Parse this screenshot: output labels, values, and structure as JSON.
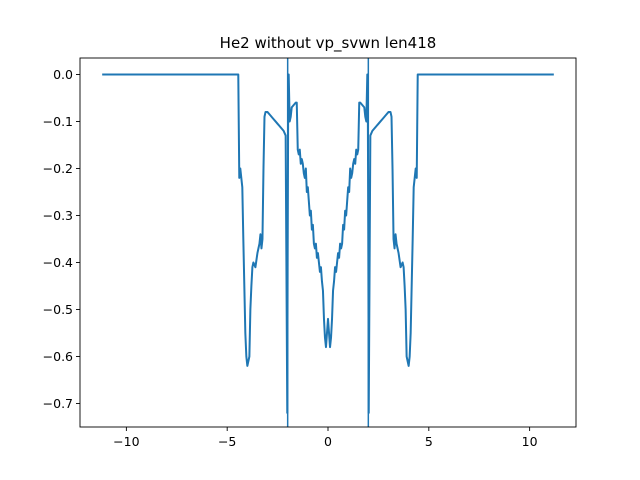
{
  "chart_data": {
    "type": "line",
    "title": "He2 without vp_svwn len418",
    "xlabel": "",
    "ylabel": "",
    "xlim": [
      -12.3,
      12.3
    ],
    "ylim": [
      -0.75,
      0.035
    ],
    "xticks": [
      -10,
      -5,
      0,
      5,
      10
    ],
    "xtick_labels": [
      "−10",
      "−5",
      "0",
      "5",
      "10"
    ],
    "yticks": [
      0.0,
      -0.1,
      -0.2,
      -0.3,
      -0.4,
      -0.5,
      -0.6,
      -0.7
    ],
    "ytick_labels": [
      "0.0",
      "−0.1",
      "−0.2",
      "−0.3",
      "−0.4",
      "−0.5",
      "−0.6",
      "−0.7"
    ],
    "grid": false,
    "series_color": "#1f77b4",
    "vlines": [
      -2.0,
      2.0
    ],
    "series": [
      {
        "x": [
          -11.2,
          -8.0,
          -5.0,
          -4.45,
          -4.4,
          -4.35,
          -4.3,
          -4.25,
          -4.2,
          -4.1,
          -4.05,
          -4.0,
          -3.9,
          -3.85,
          -3.8,
          -3.75,
          -3.7,
          -3.6,
          -3.5,
          -3.45,
          -3.4,
          -3.35,
          -3.3,
          -3.25,
          -3.2,
          -3.15,
          -3.1,
          -3.0,
          -2.9,
          -2.8,
          -2.7,
          -2.6,
          -2.5,
          -2.4,
          -2.3,
          -2.2,
          -2.1,
          -2.02,
          -2.0,
          -1.97,
          -1.95,
          -1.9,
          -1.85,
          -1.8,
          -1.7,
          -1.6,
          -1.55,
          -1.5,
          -1.45,
          -1.4,
          -1.35,
          -1.3,
          -1.25,
          -1.2,
          -1.15,
          -1.1,
          -1.05,
          -1.0,
          -0.95,
          -0.9,
          -0.85,
          -0.8,
          -0.75,
          -0.7,
          -0.65,
          -0.6,
          -0.55,
          -0.5,
          -0.45,
          -0.4,
          -0.35,
          -0.3,
          -0.25,
          -0.2,
          -0.15,
          -0.1,
          0.0,
          0.1,
          0.15,
          0.2,
          0.25,
          0.3,
          0.35,
          0.4,
          0.45,
          0.5,
          0.55,
          0.6,
          0.65,
          0.7,
          0.75,
          0.8,
          0.85,
          0.9,
          0.95,
          1.0,
          1.05,
          1.1,
          1.15,
          1.2,
          1.25,
          1.3,
          1.35,
          1.4,
          1.45,
          1.5,
          1.55,
          1.6,
          1.7,
          1.8,
          1.85,
          1.9,
          1.95,
          1.97,
          2.0,
          2.02,
          2.1,
          2.2,
          2.3,
          2.4,
          2.5,
          2.6,
          2.7,
          2.8,
          2.9,
          3.0,
          3.1,
          3.15,
          3.2,
          3.25,
          3.3,
          3.35,
          3.4,
          3.45,
          3.5,
          3.6,
          3.7,
          3.75,
          3.8,
          3.85,
          3.9,
          4.0,
          4.05,
          4.1,
          4.2,
          4.25,
          4.3,
          4.35,
          4.4,
          4.45,
          5.0,
          8.0,
          11.2
        ],
        "y": [
          0.0,
          0.0,
          0.0,
          0.0,
          -0.22,
          -0.2,
          -0.22,
          -0.24,
          -0.35,
          -0.55,
          -0.6,
          -0.62,
          -0.6,
          -0.5,
          -0.45,
          -0.41,
          -0.4,
          -0.41,
          -0.38,
          -0.37,
          -0.36,
          -0.34,
          -0.37,
          -0.35,
          -0.2,
          -0.09,
          -0.08,
          -0.08,
          -0.085,
          -0.09,
          -0.095,
          -0.1,
          -0.105,
          -0.11,
          -0.115,
          -0.12,
          -0.13,
          -0.72,
          -0.38,
          0.0,
          0.0,
          -0.1,
          -0.09,
          -0.07,
          -0.065,
          -0.06,
          -0.06,
          -0.16,
          -0.17,
          -0.16,
          -0.19,
          -0.18,
          -0.19,
          -0.21,
          -0.22,
          -0.2,
          -0.25,
          -0.24,
          -0.27,
          -0.3,
          -0.29,
          -0.33,
          -0.32,
          -0.36,
          -0.37,
          -0.36,
          -0.39,
          -0.38,
          -0.4,
          -0.42,
          -0.41,
          -0.44,
          -0.46,
          -0.52,
          -0.56,
          -0.58,
          -0.52,
          -0.58,
          -0.56,
          -0.52,
          -0.46,
          -0.44,
          -0.41,
          -0.42,
          -0.4,
          -0.38,
          -0.39,
          -0.36,
          -0.37,
          -0.36,
          -0.32,
          -0.33,
          -0.29,
          -0.3,
          -0.27,
          -0.24,
          -0.25,
          -0.2,
          -0.22,
          -0.21,
          -0.19,
          -0.18,
          -0.19,
          -0.16,
          -0.17,
          -0.16,
          -0.06,
          -0.06,
          -0.065,
          -0.07,
          -0.09,
          -0.1,
          0.0,
          0.0,
          -0.38,
          -0.72,
          -0.13,
          -0.12,
          -0.115,
          -0.11,
          -0.105,
          -0.1,
          -0.095,
          -0.09,
          -0.085,
          -0.08,
          -0.08,
          -0.09,
          -0.2,
          -0.35,
          -0.37,
          -0.34,
          -0.36,
          -0.37,
          -0.38,
          -0.41,
          -0.4,
          -0.41,
          -0.45,
          -0.5,
          -0.6,
          -0.62,
          -0.6,
          -0.55,
          -0.35,
          -0.24,
          -0.22,
          -0.2,
          -0.22,
          0.0,
          0.0,
          0.0,
          0.0
        ]
      }
    ]
  }
}
